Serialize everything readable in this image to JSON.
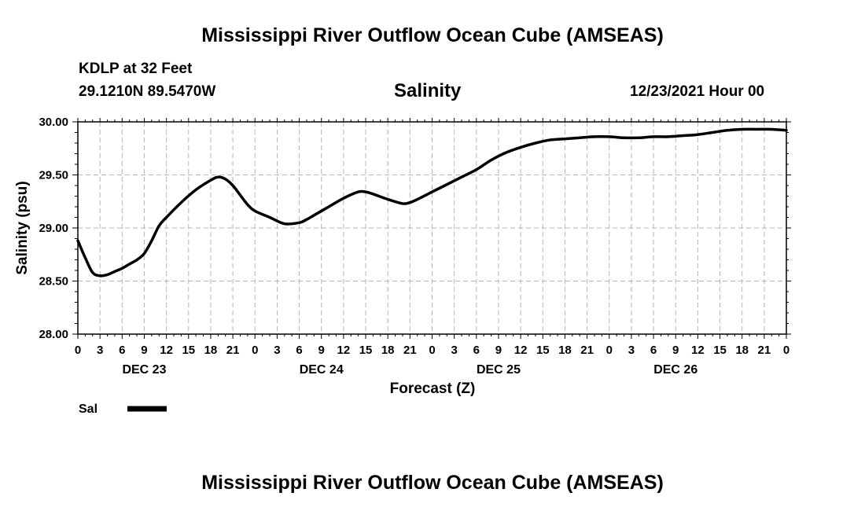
{
  "header": {
    "title": "Mississippi River Outflow Ocean Cube (AMSEAS)",
    "station": "KDLP at 32 Feet",
    "coords": "29.1210N  89.5470W",
    "variable": "Salinity",
    "datetime": "12/23/2021 Hour 00"
  },
  "footer": {
    "title": "Mississippi River Outflow Ocean Cube (AMSEAS)"
  },
  "chart_data": {
    "type": "line",
    "title": "Salinity",
    "xlabel": "Forecast (Z)",
    "ylabel": "Salinity (psu)",
    "xlim": [
      0,
      96
    ],
    "ylim": [
      28.0,
      30.0
    ],
    "y_ticks": [
      "28.00",
      "28.50",
      "29.00",
      "29.50",
      "30.00"
    ],
    "y_tick_values": [
      28.0,
      28.5,
      29.0,
      29.5,
      30.0
    ],
    "x_tick_labels": [
      "0",
      "3",
      "6",
      "9",
      "12",
      "15",
      "18",
      "21",
      "0",
      "3",
      "6",
      "9",
      "12",
      "15",
      "18",
      "21",
      "0",
      "3",
      "6",
      "9",
      "12",
      "15",
      "18",
      "21",
      "0",
      "3",
      "6",
      "9",
      "12",
      "15",
      "18",
      "21",
      "0"
    ],
    "day_labels": [
      "DEC 23",
      "DEC 24",
      "DEC 25",
      "DEC 26"
    ],
    "grid": true,
    "legend": [
      {
        "label": "Sal",
        "color": "#000000"
      }
    ],
    "series": [
      {
        "name": "Sal",
        "x": [
          0,
          1,
          2,
          3,
          4,
          5,
          6,
          7,
          8,
          9,
          10,
          11,
          12,
          14,
          16,
          18,
          19,
          20,
          21,
          22,
          23,
          24,
          26,
          28,
          30,
          31,
          32,
          34,
          36,
          38,
          39,
          40,
          42,
          44,
          45,
          46,
          48,
          50,
          52,
          54,
          56,
          58,
          60,
          62,
          64,
          66,
          68,
          70,
          72,
          74,
          76,
          78,
          80,
          82,
          84,
          86,
          88,
          90,
          92,
          94,
          96
        ],
        "y": [
          28.88,
          28.72,
          28.58,
          28.55,
          28.56,
          28.59,
          28.62,
          28.66,
          28.7,
          28.76,
          28.88,
          29.02,
          29.1,
          29.24,
          29.36,
          29.45,
          29.48,
          29.46,
          29.4,
          29.31,
          29.22,
          29.16,
          29.1,
          29.04,
          29.05,
          29.08,
          29.12,
          29.2,
          29.28,
          29.34,
          29.34,
          29.32,
          29.27,
          29.23,
          29.24,
          29.27,
          29.34,
          29.41,
          29.48,
          29.55,
          29.64,
          29.71,
          29.76,
          29.8,
          29.83,
          29.84,
          29.85,
          29.86,
          29.86,
          29.85,
          29.85,
          29.86,
          29.86,
          29.87,
          29.88,
          29.9,
          29.92,
          29.93,
          29.93,
          29.93,
          29.92
        ]
      }
    ]
  }
}
